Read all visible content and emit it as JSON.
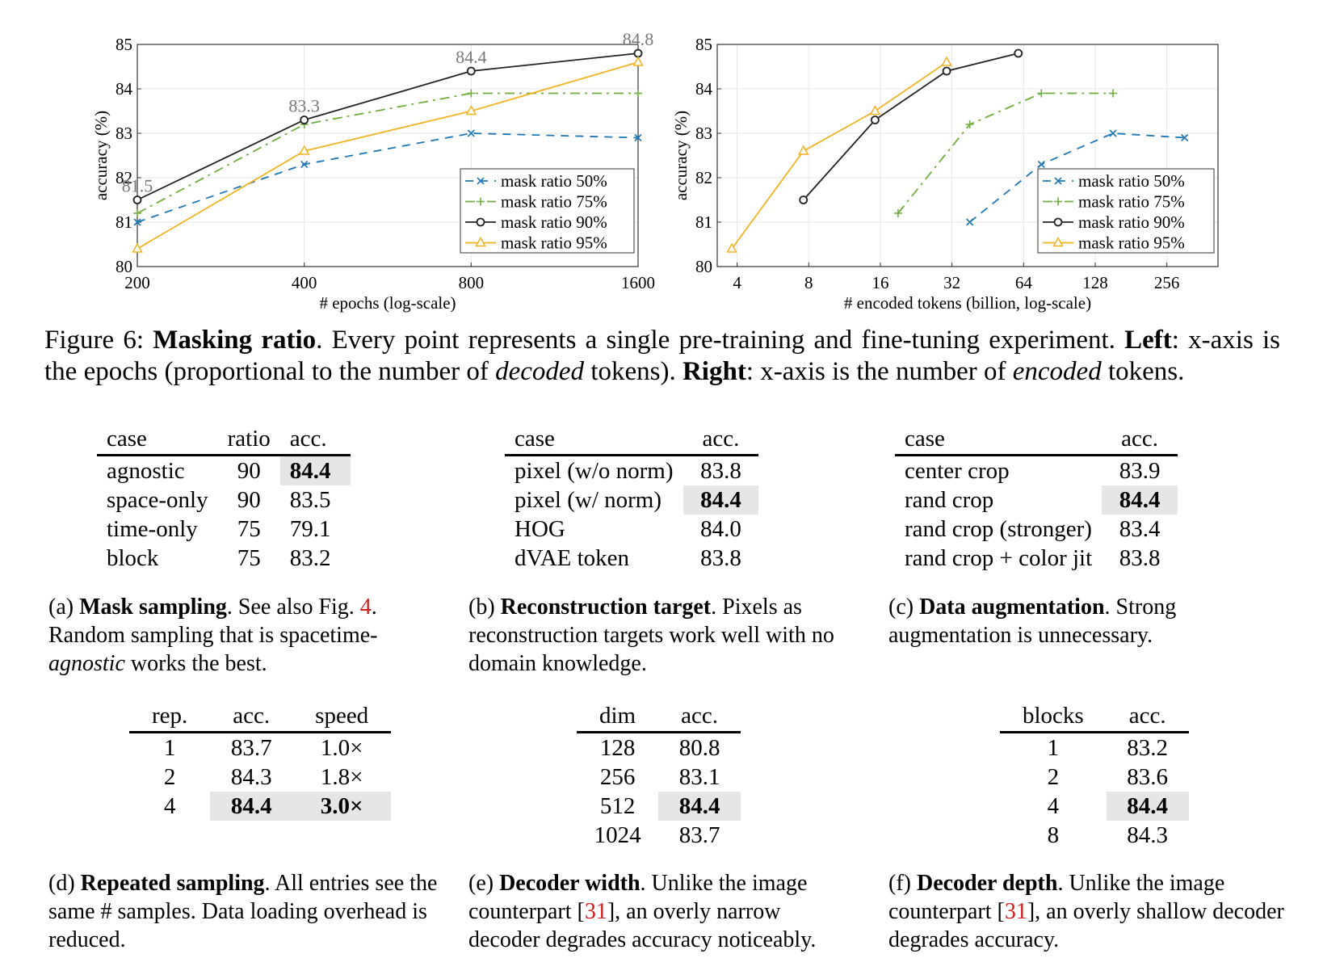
{
  "chart_data": [
    {
      "type": "line",
      "panel": "left",
      "xlabel": "# epochs (log-scale)",
      "ylabel": "accuracy (%)",
      "x_ticks": [
        "200",
        "400",
        "800",
        "1600"
      ],
      "x_values": [
        200,
        400,
        800,
        1600
      ],
      "y_ticks": [
        "80",
        "81",
        "82",
        "83",
        "84",
        "85"
      ],
      "ylim": [
        80,
        85
      ],
      "grid": true,
      "legend_position": "bottom-right",
      "series": [
        {
          "name": "mask ratio 50%",
          "x": [
            200,
            400,
            800,
            1600
          ],
          "y": [
            81.0,
            82.3,
            83.0,
            82.9
          ],
          "color": "#1f77b4",
          "dash": "dashed",
          "marker": "x"
        },
        {
          "name": "mask ratio 75%",
          "x": [
            200,
            400,
            800,
            1600
          ],
          "y": [
            81.2,
            83.2,
            83.9,
            83.9
          ],
          "color": "#6fae3c",
          "dash": "dashdot",
          "marker": "+"
        },
        {
          "name": "mask ratio 90%",
          "x": [
            200,
            400,
            800,
            1600
          ],
          "y": [
            81.5,
            83.3,
            84.4,
            84.8
          ],
          "color": "#222222",
          "dash": "solid",
          "marker": "o"
        },
        {
          "name": "mask ratio 95%",
          "x": [
            200,
            400,
            800,
            1600
          ],
          "y": [
            80.4,
            82.6,
            83.5,
            84.6
          ],
          "color": "#f0b323",
          "dash": "solid",
          "marker": "triangle"
        }
      ],
      "annotations": [
        {
          "text": "81.5",
          "x": 200,
          "y": 81.5
        },
        {
          "text": "83.3",
          "x": 400,
          "y": 83.3
        },
        {
          "text": "84.4",
          "x": 800,
          "y": 84.4
        },
        {
          "text": "84.8",
          "x": 1600,
          "y": 84.8
        }
      ]
    },
    {
      "type": "line",
      "panel": "right",
      "xlabel": "# encoded tokens (billion, log-scale)",
      "ylabel": "accuracy (%)",
      "x_ticks": [
        "4",
        "8",
        "16",
        "32",
        "64",
        "128",
        "256"
      ],
      "x_values": [
        4,
        8,
        16,
        32,
        64,
        128,
        256
      ],
      "xlim": [
        3.3,
        420
      ],
      "y_ticks": [
        "80",
        "81",
        "82",
        "83",
        "84",
        "85"
      ],
      "ylim": [
        80,
        85
      ],
      "grid": true,
      "legend_position": "bottom-right",
      "series": [
        {
          "name": "mask ratio 50%",
          "x": [
            38,
            76,
            152,
            304
          ],
          "y": [
            81.0,
            82.3,
            83.0,
            82.9
          ],
          "color": "#1f77b4",
          "dash": "dashed",
          "marker": "x"
        },
        {
          "name": "mask ratio 75%",
          "x": [
            19,
            38,
            76,
            152
          ],
          "y": [
            81.2,
            83.2,
            83.9,
            83.9
          ],
          "color": "#6fae3c",
          "dash": "dashdot",
          "marker": "+"
        },
        {
          "name": "mask ratio 90%",
          "x": [
            7.6,
            15.2,
            30.4,
            60.8
          ],
          "y": [
            81.5,
            83.3,
            84.4,
            84.8
          ],
          "color": "#222222",
          "dash": "solid",
          "marker": "o"
        },
        {
          "name": "mask ratio 95%",
          "x": [
            3.8,
            7.6,
            15.2,
            30.4
          ],
          "y": [
            80.4,
            82.6,
            83.5,
            84.6
          ],
          "color": "#f0b323",
          "dash": "solid",
          "marker": "triangle"
        }
      ]
    }
  ],
  "figure_caption": {
    "prefix": "Figure 6: ",
    "title": "Masking ratio",
    "t1": ". Every point represents a single pre-training and fine-tuning experiment. ",
    "left_label": "Left",
    "t2": ": x-axis is the epochs (proportional to the number of ",
    "em1": "decoded",
    "t3": " tokens). ",
    "right_label": "Right",
    "t4": ": x-axis is the number of ",
    "em2": "encoded",
    "t5": " tokens."
  },
  "tables": {
    "a": {
      "headers": [
        "case",
        "ratio",
        "acc."
      ],
      "rows": [
        [
          "agnostic",
          "90",
          "84.4"
        ],
        [
          "space-only",
          "90",
          "83.5"
        ],
        [
          "time-only",
          "75",
          "79.1"
        ],
        [
          "block",
          "75",
          "83.2"
        ]
      ],
      "caption": {
        "label": "(a) ",
        "title": "Mask sampling",
        "t1": ".  See also Fig. ",
        "ref": "4",
        "t2": ". Random sampling that is spacetime-",
        "em": "agnostic",
        "t3": " works the best."
      }
    },
    "b": {
      "headers": [
        "case",
        "acc."
      ],
      "rows": [
        [
          "pixel (w/o norm)",
          "83.8"
        ],
        [
          "pixel (w/ norm)",
          "84.4"
        ],
        [
          "HOG",
          "84.0"
        ],
        [
          "dVAE token",
          "83.8"
        ]
      ],
      "caption": {
        "label": "(b) ",
        "title": "Reconstruction target",
        "t1": ". Pixels as reconstruction targets work well with no domain knowledge."
      }
    },
    "c": {
      "headers": [
        "case",
        "acc."
      ],
      "rows": [
        [
          "center crop",
          "83.9"
        ],
        [
          "rand crop",
          "84.4"
        ],
        [
          "rand crop (stronger)",
          "83.4"
        ],
        [
          "rand crop + color jit",
          "83.8"
        ]
      ],
      "caption": {
        "label": "(c) ",
        "title": "Data augmentation",
        "t1": ". Strong augmentation is unnecessary."
      }
    },
    "d": {
      "headers": [
        "rep.",
        "acc.",
        "speed"
      ],
      "rows": [
        [
          "1",
          "83.7",
          "1.0×"
        ],
        [
          "2",
          "84.3",
          "1.8×"
        ],
        [
          "4",
          "84.4",
          "3.0×"
        ]
      ],
      "caption": {
        "label": "(d) ",
        "title": "Repeated sampling",
        "t1": ".  All entries see the same # samples. Data loading overhead is reduced."
      }
    },
    "e": {
      "headers": [
        "dim",
        "acc."
      ],
      "rows": [
        [
          "128",
          "80.8"
        ],
        [
          "256",
          "83.1"
        ],
        [
          "512",
          "84.4"
        ],
        [
          "1024",
          "83.7"
        ]
      ],
      "caption": {
        "label": "(e) ",
        "title": "Decoder width",
        "t1": ". Unlike the image counterpart [",
        "ref": "31",
        "t2": "], an overly narrow decoder degrades accuracy noticeably."
      }
    },
    "f": {
      "headers": [
        "blocks",
        "acc."
      ],
      "rows": [
        [
          "1",
          "83.2"
        ],
        [
          "2",
          "83.6"
        ],
        [
          "4",
          "84.4"
        ],
        [
          "8",
          "84.3"
        ]
      ],
      "caption": {
        "label": "(f) ",
        "title": "Decoder depth",
        "t1": ". Unlike the image counterpart [",
        "ref": "31",
        "t2": "], an overly shallow decoder degrades accuracy."
      }
    }
  }
}
